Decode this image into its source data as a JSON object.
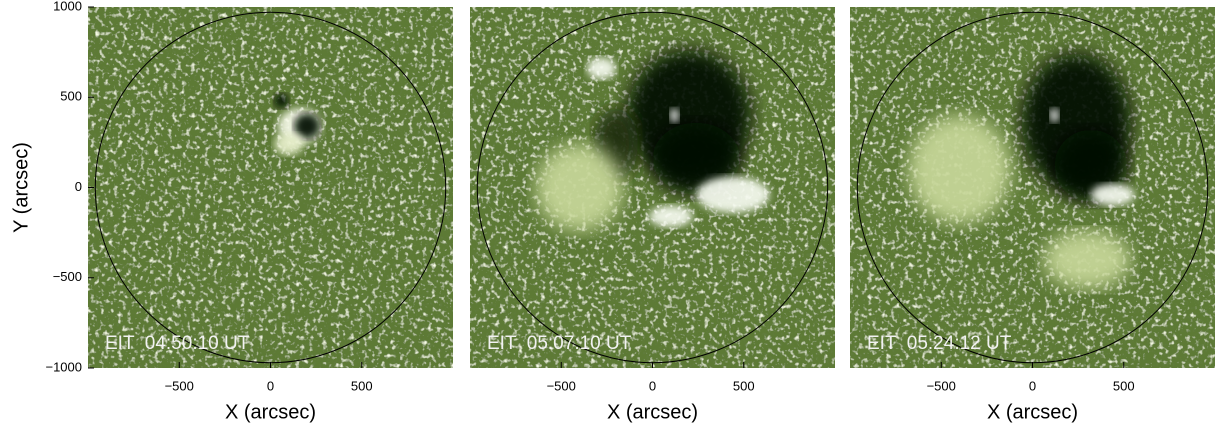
{
  "chart_data": [
    {
      "type": "image",
      "label": "EIT  04:50:10 UT",
      "xlabel": "X (arcsec)",
      "ylabel": "Y (arcsec)",
      "xlim": [
        -1000,
        1000
      ],
      "ylim": [
        -1000,
        1000
      ],
      "xticks": [
        {
          "value": -500,
          "label": "−500"
        },
        0,
        500
      ],
      "yticks": [
        {
          "value": -1000,
          "label": "−1000"
        },
        {
          "value": -500,
          "label": "−500"
        },
        0,
        500,
        1000
      ]
    },
    {
      "type": "image",
      "label": "EIT  05:07:10 UT",
      "xlabel": "X (arcsec)",
      "xlim": [
        -1000,
        1000
      ],
      "ylim": [
        -1000,
        1000
      ],
      "xticks": [
        {
          "value": -500,
          "label": "−500"
        },
        0,
        500
      ]
    },
    {
      "type": "image",
      "label": "EIT  05:24:12 UT",
      "xlabel": "X (arcsec)",
      "xlim": [
        -1000,
        1000
      ],
      "ylim": [
        -1000,
        1000
      ],
      "xticks": [
        {
          "value": -500,
          "label": "−500"
        },
        0,
        500
      ]
    }
  ]
}
